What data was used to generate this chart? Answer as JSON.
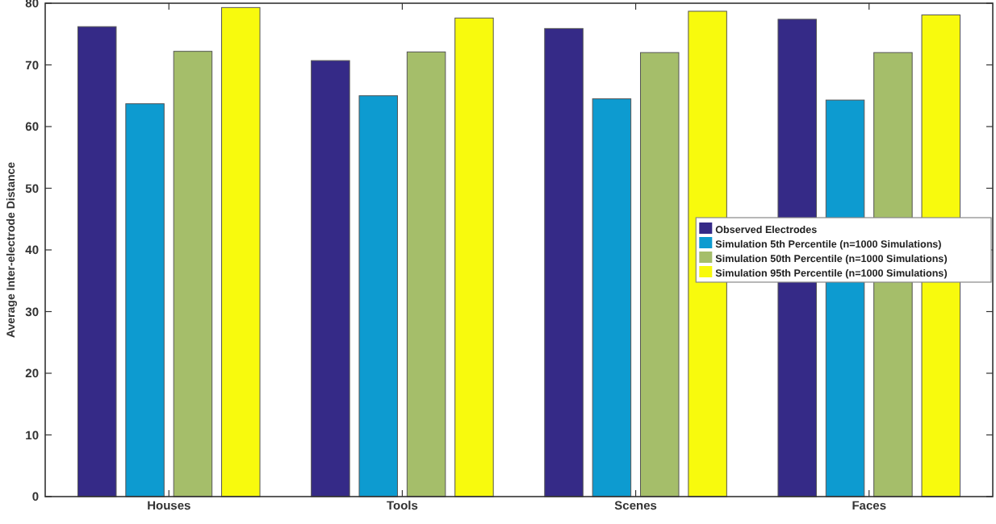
{
  "chart_data": {
    "type": "bar",
    "ylabel": "Average Inter-electrode Distance",
    "categories": [
      "Houses",
      "Tools",
      "Scenes",
      "Faces"
    ],
    "series": [
      {
        "name": "Observed Electrodes",
        "color": "#352a87",
        "values": [
          76.2,
          70.7,
          75.9,
          77.4
        ]
      },
      {
        "name": "Simulation 5th Percentile (n=1000 Simulations)",
        "color": "#0d9bd0",
        "values": [
          63.7,
          65.0,
          64.5,
          64.3
        ]
      },
      {
        "name": "Simulation 50th Percentile (n=1000 Simulations)",
        "color": "#a5be6a",
        "values": [
          72.2,
          72.1,
          72.0,
          72.0
        ]
      },
      {
        "name": "Simulation 95th Percentile (n=1000 Simulations)",
        "color": "#f8fa0d",
        "values": [
          79.3,
          77.6,
          78.7,
          78.1
        ]
      }
    ],
    "ylim": [
      0,
      80
    ],
    "yticks": [
      0,
      10,
      20,
      30,
      40,
      50,
      60,
      70,
      80
    ],
    "legend": "right"
  }
}
